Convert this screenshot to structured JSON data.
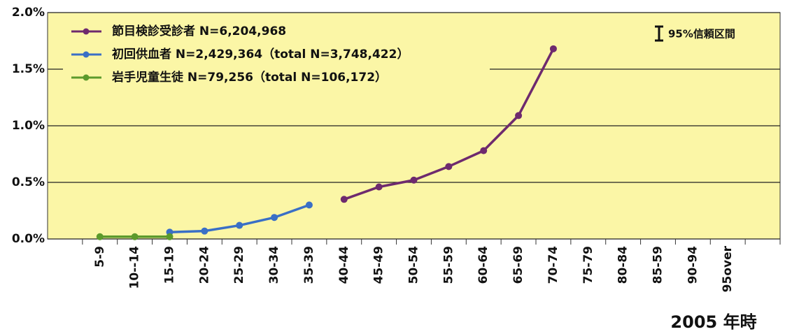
{
  "chart_data": {
    "type": "line",
    "categories": [
      null,
      "5-9",
      "10--14",
      "15-19",
      "20-24",
      "25-29",
      "30-34",
      "35-39",
      "40-44",
      "45-49",
      "50-54",
      "55-59",
      "60-64",
      "65-69",
      "70-74",
      "75-79",
      "80-84",
      "85-59",
      "90-94",
      "95over",
      null
    ],
    "series": [
      {
        "name": "節目検診受診者  N=6,204,968",
        "color": "#6e2a6e",
        "values": [
          null,
          null,
          null,
          null,
          null,
          null,
          null,
          null,
          0.35,
          0.46,
          0.52,
          0.64,
          0.78,
          1.09,
          1.68,
          null,
          null,
          null,
          null,
          null,
          null
        ]
      },
      {
        "name": "初回供血者  N=2,429,364（total N=3,748,422）",
        "color": "#3a6fc6",
        "values": [
          null,
          null,
          null,
          0.06,
          0.07,
          0.12,
          0.19,
          0.3,
          null,
          null,
          null,
          null,
          null,
          null,
          null,
          null,
          null,
          null,
          null,
          null,
          null
        ]
      },
      {
        "name": "岩手児童生徒  N=79,256（total N=106,172）",
        "color": "#5c9a2c",
        "values": [
          null,
          0.02,
          0.02,
          0.02,
          null,
          null,
          null,
          null,
          null,
          null,
          null,
          null,
          null,
          null,
          null,
          null,
          null,
          null,
          null,
          null,
          null
        ]
      }
    ],
    "ylim": [
      0,
      2
    ],
    "yticks": [
      {
        "value": 0,
        "label": "0.0%"
      },
      {
        "value": 0.5,
        "label": "0.5%"
      },
      {
        "value": 1,
        "label": "1.0%"
      },
      {
        "value": 1.5,
        "label": "1.5%"
      },
      {
        "value": 2,
        "label": "2.0%"
      }
    ],
    "grid": true,
    "annotation": "95%信頼区間",
    "xlabel": "2005 年時"
  }
}
